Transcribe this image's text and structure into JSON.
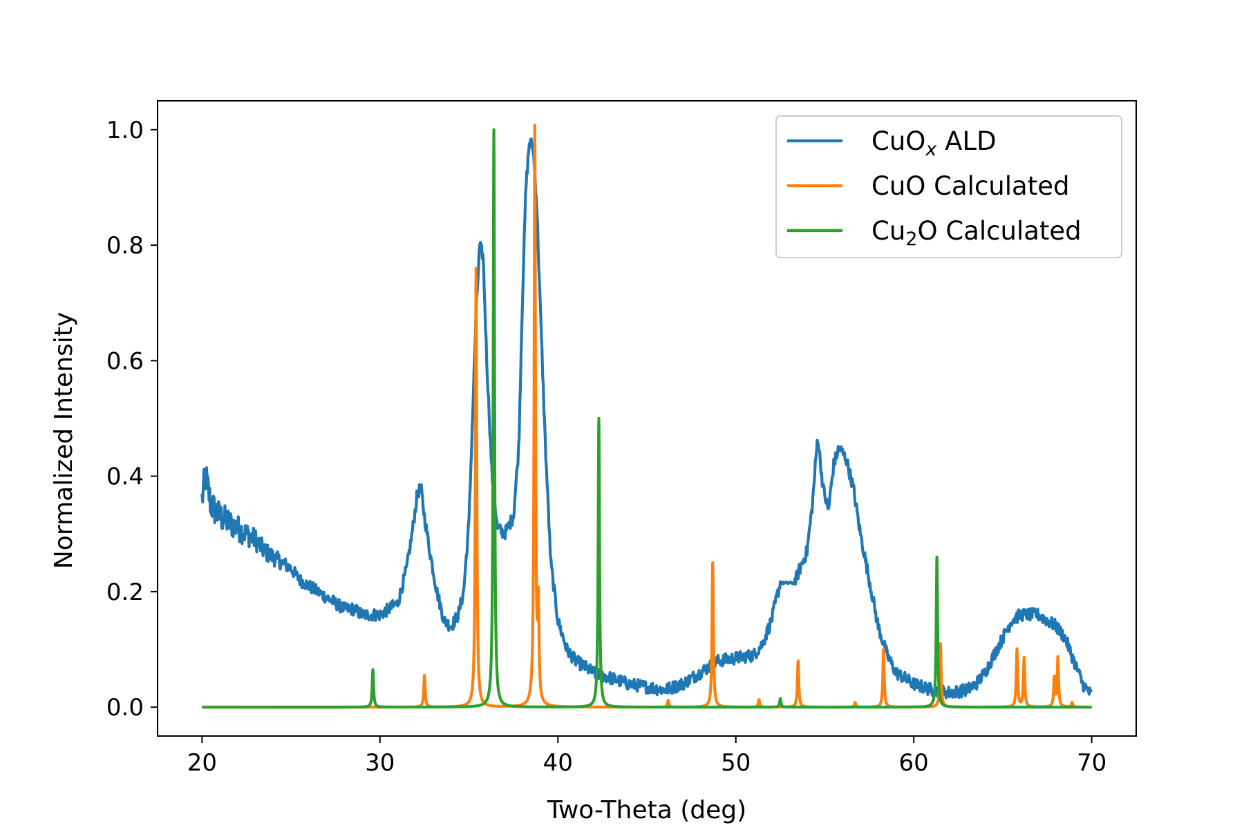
{
  "chart_data": {
    "type": "line",
    "xlabel": "Two-Theta (deg)",
    "ylabel": "Normalized Intensity",
    "xlim": [
      17.5,
      72.5
    ],
    "ylim": [
      -0.05,
      1.05
    ],
    "xticks": [
      20,
      30,
      40,
      50,
      60,
      70
    ],
    "yticks": [
      0.0,
      0.2,
      0.4,
      0.6,
      0.8,
      1.0
    ],
    "x_tick_labels": [
      "20",
      "30",
      "40",
      "50",
      "60",
      "70"
    ],
    "y_tick_labels": [
      "0.0",
      "0.2",
      "0.4",
      "0.6",
      "0.8",
      "1.0"
    ],
    "grid": false,
    "legend_position": "top-right",
    "series": [
      {
        "name": "CuOx ALD",
        "legend_base": "CuO",
        "legend_sub": "x",
        "legend_suffix": " ALD",
        "color": "#1f77b4",
        "style": "noisy-measured",
        "x": [
          20,
          20.2,
          20.5,
          21,
          21.5,
          22,
          22.5,
          23,
          23.5,
          24,
          24.5,
          25,
          25.5,
          26,
          26.5,
          27,
          27.5,
          28,
          28.5,
          29,
          29.5,
          30,
          30.5,
          31,
          31.5,
          31.8,
          32.1,
          32.3,
          32.5,
          32.8,
          33.2,
          33.6,
          34,
          34.4,
          34.7,
          35,
          35.2,
          35.4,
          35.6,
          35.8,
          36,
          36.3,
          36.6,
          37,
          37.5,
          37.8,
          38,
          38.2,
          38.4,
          38.6,
          38.8,
          39,
          39.3,
          39.6,
          40,
          40.5,
          41,
          41.5,
          42,
          43,
          44,
          45,
          46,
          47,
          47.5,
          48,
          48.5,
          49,
          50,
          51,
          51.5,
          52,
          52.3,
          52.5,
          53.3,
          53.6,
          54,
          54.3,
          54.6,
          54.9,
          55.2,
          55.5,
          55.8,
          56.2,
          56.6,
          57,
          57.5,
          58,
          58.5,
          59,
          60,
          61,
          62,
          63,
          63.5,
          64,
          64.5,
          65,
          65.5,
          66,
          66.5,
          67,
          67.5,
          68,
          68.5,
          69,
          69.5,
          70
        ],
        "y": [
          0.36,
          0.4,
          0.35,
          0.33,
          0.32,
          0.31,
          0.3,
          0.29,
          0.27,
          0.26,
          0.25,
          0.24,
          0.22,
          0.21,
          0.2,
          0.19,
          0.18,
          0.17,
          0.17,
          0.16,
          0.16,
          0.16,
          0.17,
          0.18,
          0.24,
          0.3,
          0.37,
          0.38,
          0.33,
          0.27,
          0.2,
          0.15,
          0.14,
          0.16,
          0.2,
          0.32,
          0.5,
          0.68,
          0.8,
          0.78,
          0.6,
          0.4,
          0.31,
          0.3,
          0.33,
          0.45,
          0.7,
          0.9,
          0.98,
          0.97,
          0.88,
          0.7,
          0.45,
          0.25,
          0.15,
          0.1,
          0.08,
          0.07,
          0.06,
          0.05,
          0.04,
          0.035,
          0.03,
          0.04,
          0.05,
          0.06,
          0.07,
          0.08,
          0.085,
          0.09,
          0.11,
          0.15,
          0.19,
          0.215,
          0.215,
          0.24,
          0.27,
          0.35,
          0.47,
          0.38,
          0.34,
          0.42,
          0.45,
          0.43,
          0.38,
          0.3,
          0.22,
          0.14,
          0.09,
          0.06,
          0.04,
          0.03,
          0.025,
          0.03,
          0.04,
          0.06,
          0.09,
          0.12,
          0.15,
          0.16,
          0.16,
          0.16,
          0.15,
          0.14,
          0.12,
          0.08,
          0.04,
          0.02
        ]
      },
      {
        "name": "CuO Calculated",
        "legend_base": "CuO Calculated",
        "color": "#ff7f0e",
        "style": "peaks",
        "peaks": [
          {
            "x": 32.5,
            "y": 0.055
          },
          {
            "x": 35.4,
            "y": 0.76
          },
          {
            "x": 38.7,
            "y": 1.0
          },
          {
            "x": 38.9,
            "y": 0.16
          },
          {
            "x": 46.2,
            "y": 0.012
          },
          {
            "x": 48.7,
            "y": 0.25
          },
          {
            "x": 51.3,
            "y": 0.013
          },
          {
            "x": 53.5,
            "y": 0.08
          },
          {
            "x": 56.7,
            "y": 0.008
          },
          {
            "x": 58.3,
            "y": 0.1
          },
          {
            "x": 61.5,
            "y": 0.11
          },
          {
            "x": 65.8,
            "y": 0.1
          },
          {
            "x": 66.2,
            "y": 0.085
          },
          {
            "x": 67.9,
            "y": 0.05
          },
          {
            "x": 68.1,
            "y": 0.085
          },
          {
            "x": 68.9,
            "y": 0.008
          }
        ]
      },
      {
        "name": "Cu2O Calculated",
        "legend_base": "Cu",
        "legend_sub": "2",
        "legend_suffix": "O Calculated",
        "color": "#2ca02c",
        "style": "peaks",
        "peaks": [
          {
            "x": 29.6,
            "y": 0.065
          },
          {
            "x": 36.4,
            "y": 1.0
          },
          {
            "x": 42.3,
            "y": 0.5
          },
          {
            "x": 52.5,
            "y": 0.015
          },
          {
            "x": 61.3,
            "y": 0.26
          }
        ]
      }
    ]
  }
}
